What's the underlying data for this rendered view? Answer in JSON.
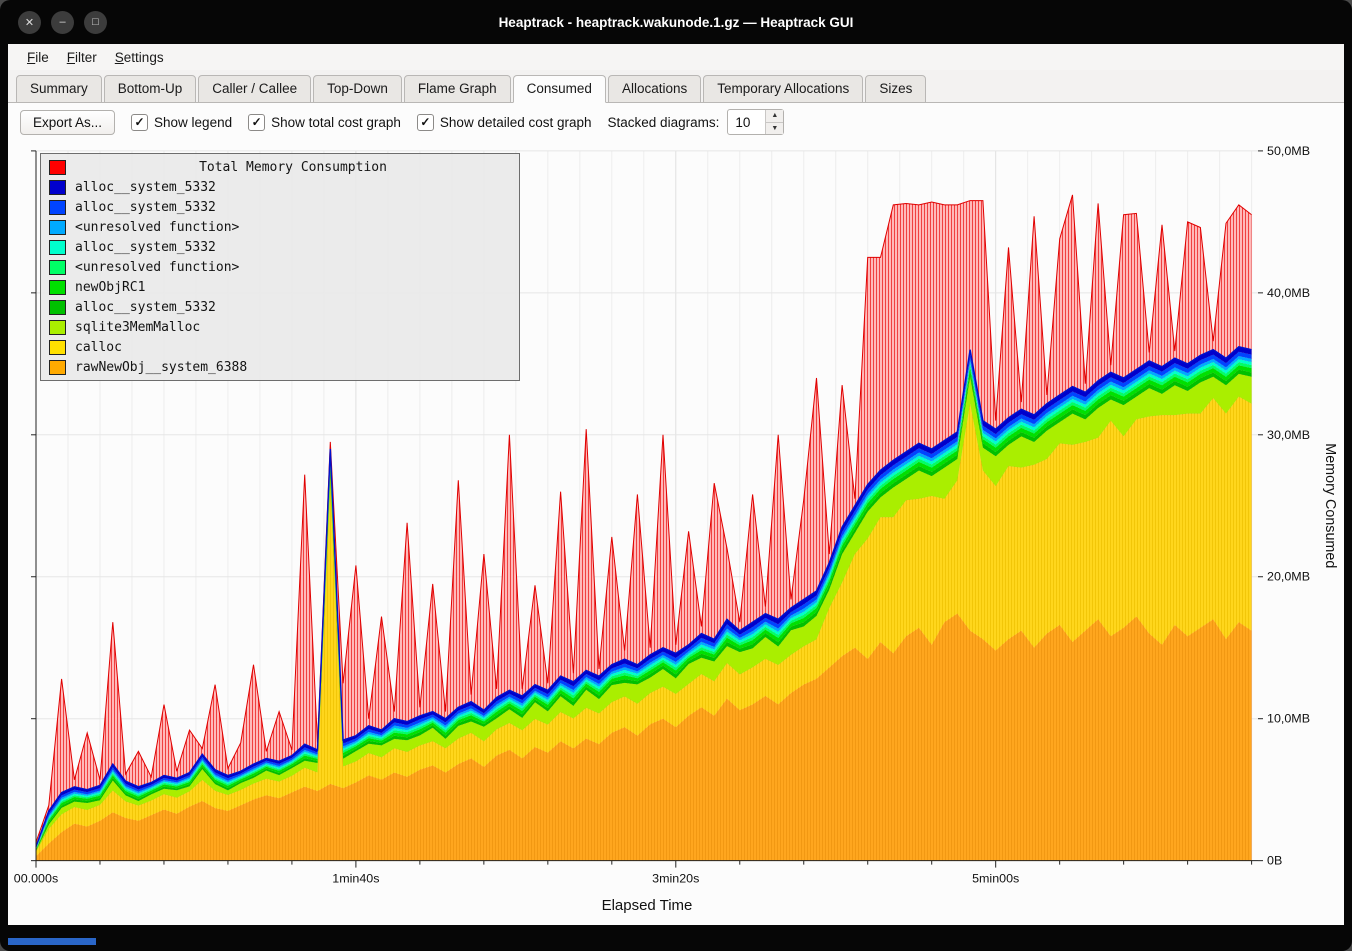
{
  "window": {
    "title": "Heaptrack - heaptrack.wakunode.1.gz — Heaptrack GUI"
  },
  "menubar": {
    "items": [
      "File",
      "Filter",
      "Settings"
    ]
  },
  "tabs": {
    "items": [
      "Summary",
      "Bottom-Up",
      "Caller / Callee",
      "Top-Down",
      "Flame Graph",
      "Consumed",
      "Allocations",
      "Temporary Allocations",
      "Sizes"
    ],
    "active": "Consumed"
  },
  "toolbar": {
    "export_label": "Export As...",
    "checkboxes": [
      {
        "label": "Show legend",
        "checked": true
      },
      {
        "label": "Show total cost graph",
        "checked": true
      },
      {
        "label": "Show detailed cost graph",
        "checked": true
      }
    ],
    "stacked_label": "Stacked diagrams:",
    "stacked_value": "10"
  },
  "legend": {
    "title": "Total Memory Consumption",
    "title_color": "#ff0000",
    "items": [
      {
        "label": "alloc__system_5332",
        "color": "#0000cc"
      },
      {
        "label": "alloc__system_5332",
        "color": "#0044ff"
      },
      {
        "label": "<unresolved function>",
        "color": "#00aaff"
      },
      {
        "label": "alloc__system_5332",
        "color": "#00ffcc"
      },
      {
        "label": "<unresolved function>",
        "color": "#00ff66"
      },
      {
        "label": "newObjRC1",
        "color": "#00e000"
      },
      {
        "label": "alloc__system_5332",
        "color": "#00c000"
      },
      {
        "label": "sqlite3MemMalloc",
        "color": "#aaee00"
      },
      {
        "label": "calloc",
        "color": "#ffe000"
      },
      {
        "label": "rawNewObj__system_6388",
        "color": "#ffaa00"
      }
    ]
  },
  "chart_data": {
    "type": "area",
    "title": "Total Memory Consumption",
    "xlabel": "Elapsed Time",
    "ylabel": "Memory Consumed",
    "x_tick_labels": [
      "00.000s",
      "1min40s",
      "3min20s",
      "5min00s"
    ],
    "x_tick_seconds": [
      0,
      100,
      200,
      300
    ],
    "y_tick_labels": [
      "0B",
      "10,0MB",
      "20,0MB",
      "30,0MB",
      "40,0MB",
      "50,0MB"
    ],
    "y_ticks_mb": [
      0,
      10,
      20,
      30,
      40,
      50
    ],
    "y_max_mb": 50,
    "t_step_s": 4,
    "t_max_s": 382,
    "total_color": "#ff0000",
    "total_mb": [
      1.3,
      3.9,
      12.8,
      5.7,
      9.0,
      5.7,
      16.8,
      6.1,
      7.7,
      5.9,
      11.0,
      6.3,
      9.2,
      7.9,
      12.4,
      6.5,
      8.3,
      13.8,
      7.7,
      10.5,
      7.8,
      27.2,
      8.3,
      29.5,
      12.5,
      20.8,
      10.0,
      17.2,
      10.5,
      23.8,
      10.8,
      19.5,
      10.5,
      26.8,
      11.7,
      21.6,
      12.1,
      30.0,
      12.1,
      19.4,
      12.5,
      26.0,
      13.2,
      30.4,
      13.5,
      22.8,
      14.8,
      25.8,
      15.0,
      30.0,
      15.2,
      23.2,
      16.5,
      26.6,
      22.0,
      16.8,
      25.8,
      17.9,
      30.0,
      18.4,
      25.4,
      34.0,
      21.6,
      33.5,
      25.5,
      42.5,
      42.5,
      46.2,
      46.3,
      46.2,
      46.4,
      46.2,
      46.2,
      46.5,
      46.5,
      31.0,
      43.2,
      32.3,
      45.4,
      32.8,
      43.8,
      46.9,
      33.6,
      46.3,
      34.9,
      45.5,
      45.6,
      35.8,
      44.8,
      35.9,
      45.0,
      44.6,
      36.6,
      44.9,
      46.2,
      45.5
    ],
    "stack_top_mb": [
      1.0,
      3.5,
      4.8,
      5.2,
      5.0,
      5.3,
      6.8,
      5.6,
      5.2,
      5.5,
      6.0,
      5.8,
      6.2,
      7.5,
      6.4,
      6.0,
      6.3,
      6.8,
      7.2,
      7.0,
      7.4,
      8.2,
      7.8,
      29.0,
      8.5,
      8.8,
      9.5,
      9.2,
      10.0,
      9.8,
      10.2,
      10.5,
      10.0,
      10.8,
      11.2,
      10.6,
      11.5,
      12.0,
      11.6,
      12.4,
      12.0,
      13.0,
      12.6,
      13.4,
      13.0,
      13.8,
      14.2,
      13.8,
      14.5,
      15.0,
      14.6,
      15.2,
      16.0,
      15.6,
      17.0,
      16.2,
      16.8,
      17.4,
      17.0,
      17.8,
      18.4,
      19.0,
      21.0,
      23.5,
      25.0,
      26.5,
      27.5,
      28.2,
      28.8,
      29.4,
      29.0,
      29.6,
      30.2,
      36.0,
      31.0,
      30.4,
      31.2,
      31.8,
      31.4,
      32.2,
      32.8,
      33.4,
      33.0,
      33.8,
      34.4,
      34.0,
      34.6,
      35.2,
      34.8,
      35.4,
      35.0,
      35.6,
      36.0,
      35.4,
      36.2,
      36.0
    ],
    "orange_top_mb": [
      0.3,
      1.2,
      2.0,
      2.6,
      2.4,
      2.8,
      3.4,
      3.0,
      2.8,
      3.2,
      3.6,
      3.3,
      3.8,
      4.2,
      3.7,
      3.5,
      3.9,
      4.3,
      4.6,
      4.4,
      4.8,
      5.2,
      4.9,
      5.4,
      5.1,
      5.5,
      6.0,
      5.7,
      6.2,
      5.9,
      6.4,
      6.7,
      6.2,
      6.8,
      7.2,
      6.6,
      7.4,
      7.8,
      7.2,
      8.0,
      7.6,
      8.4,
      7.9,
      8.6,
      8.2,
      9.0,
      9.4,
      8.8,
      9.6,
      10.0,
      9.4,
      10.2,
      10.8,
      10.2,
      11.4,
      10.6,
      11.0,
      11.6,
      11.0,
      11.8,
      12.4,
      12.8,
      13.6,
      14.4,
      15.0,
      14.2,
      15.4,
      14.6,
      15.8,
      16.4,
      15.2,
      16.8,
      17.4,
      16.2,
      15.6,
      14.8,
      15.6,
      16.2,
      15.0,
      16.0,
      16.6,
      15.4,
      16.2,
      17.0,
      15.8,
      16.4,
      17.2,
      16.0,
      15.2,
      16.6,
      15.8,
      16.4,
      17.0,
      15.6,
      16.8,
      16.2
    ],
    "greenyellow_mb": [
      0.4,
      0.6,
      0.8,
      0.7,
      1.0,
      0.6,
      1.2,
      0.8,
      0.6,
      1.0,
      0.8,
      1.2,
      0.7,
      1.4,
      0.9,
      0.6,
      1.1,
      0.8,
      1.3,
      0.9,
      1.2,
      0.8,
      1.4,
      1.0,
      0.8,
      1.3,
      1.0,
      1.5,
      0.9,
      1.2,
      1.0,
      1.6,
      0.9,
      1.3,
      1.1,
      1.7,
      1.0,
      1.4,
      1.1,
      1.8,
      1.2,
      1.5,
      1.0,
      1.8,
      1.2,
      1.6,
      1.1,
      1.9,
      1.3,
      1.6,
      1.2,
      2.0,
      1.3,
      1.7,
      1.2,
      2.0,
      1.4,
      1.8,
      1.3,
      2.1,
      1.4,
      1.8,
      1.3,
      2.0,
      1.5,
      1.9,
      1.4,
      2.1,
      1.5,
      2.0,
      1.4,
      2.2,
      1.5,
      1.9,
      1.6,
      2.1,
      1.5,
      2.2,
      1.6,
      2.0,
      1.5,
      2.2,
      1.6,
      2.1,
      1.5,
      2.2,
      1.6,
      2.0,
      1.5,
      2.1,
      1.6,
      2.2,
      1.5,
      2.0,
      1.6,
      1.9
    ],
    "thin_bands": [
      {
        "name": "alloc__system_5332",
        "color": "#0000cc",
        "mb": 0.35
      },
      {
        "name": "alloc__system_5332",
        "color": "#0044ff",
        "mb": 0.3
      },
      {
        "name": "<unresolved function>",
        "color": "#00aaff",
        "mb": 0.22
      },
      {
        "name": "alloc__system_5332",
        "color": "#00ffcc",
        "mb": 0.22
      },
      {
        "name": "<unresolved function>",
        "color": "#00ff66",
        "mb": 0.22
      },
      {
        "name": "newObjRC1",
        "color": "#00e000",
        "mb": 0.3
      },
      {
        "name": "alloc__system_5332",
        "color": "#00c000",
        "mb": 0.3
      }
    ],
    "greenyellow_band": {
      "name": "sqlite3MemMalloc",
      "color": "#aaee00"
    },
    "yellow_band": {
      "name": "calloc",
      "color": "#ffd61c"
    },
    "orange_band": {
      "name": "rawNewObj__system_6388",
      "color": "#ffa61e"
    }
  }
}
